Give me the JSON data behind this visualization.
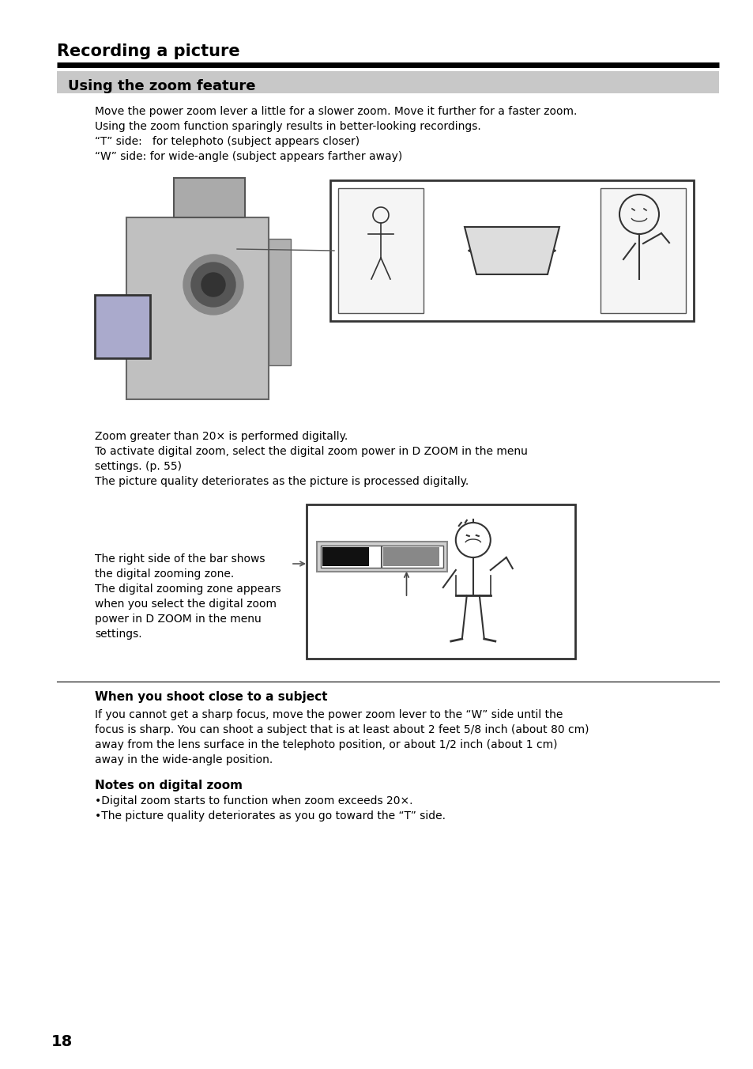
{
  "page_title": "Recording a picture",
  "section_title": "Using the zoom feature",
  "section_bg": "#c8c8c8",
  "body_text_1_lines": [
    "Move the power zoom lever a little for a slower zoom. Move it further for a faster zoom.",
    "Using the zoom function sparingly results in better-looking recordings.",
    "“T” side:   for telephoto (subject appears closer)",
    "“W” side: for wide-angle (subject appears farther away)"
  ],
  "body_text_2_lines": [
    "Zoom greater than 20× is performed digitally.",
    "To activate digital zoom, select the digital zoom power in D ZOOM in the menu",
    "settings. (p. 55)",
    "The picture quality deteriorates as the picture is processed digitally."
  ],
  "callout_text_lines": [
    "The right side of the bar shows",
    "the digital zooming zone.",
    "The digital zooming zone appears",
    "when you select the digital zoom",
    "power in D ZOOM in the menu",
    "settings."
  ],
  "divider_label": "When you shoot close to a subject",
  "divider_body_lines": [
    "If you cannot get a sharp focus, move the power zoom lever to the “W” side until the",
    "focus is sharp. You can shoot a subject that is at least about 2 feet 5/8 inch (about 80 cm)",
    "away from the lens surface in the telephoto position, or about 1/2 inch (about 1 cm)",
    "away in the wide-angle position."
  ],
  "notes_title": "Notes on digital zoom",
  "note_1": "Digital zoom starts to function when zoom exceeds 20×.",
  "note_2": "The picture quality deteriorates as you go toward the “T” side.",
  "page_number": "18",
  "bg_color": "#ffffff",
  "text_color": "#000000"
}
